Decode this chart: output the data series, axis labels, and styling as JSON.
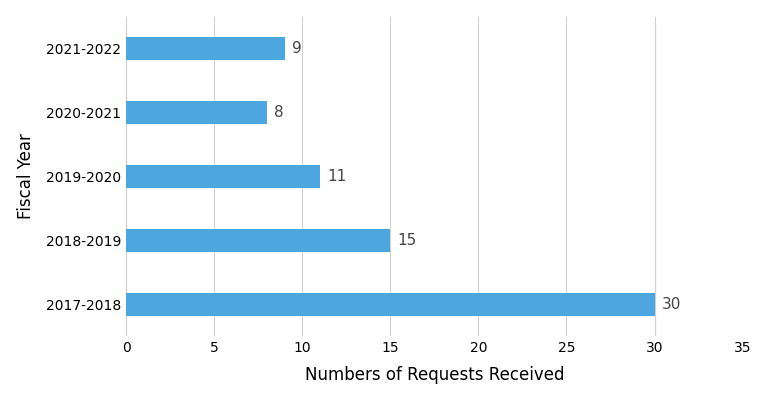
{
  "categories": [
    "2017-2018",
    "2018-2019",
    "2019-2020",
    "2020-2021",
    "2021-2022"
  ],
  "values": [
    30,
    15,
    11,
    8,
    9
  ],
  "bar_color": "#4da6e0",
  "xlabel": "Numbers of Requests Received",
  "ylabel": "Fiscal Year",
  "xlim": [
    0,
    35
  ],
  "xticks": [
    0,
    5,
    10,
    15,
    20,
    25,
    30,
    35
  ],
  "bar_height": 0.35,
  "label_fontsize": 11,
  "tick_fontsize": 10,
  "axis_label_fontsize": 12,
  "background_color": "#ffffff",
  "grid_color": "#d0d0d0",
  "label_padding": 0.4
}
